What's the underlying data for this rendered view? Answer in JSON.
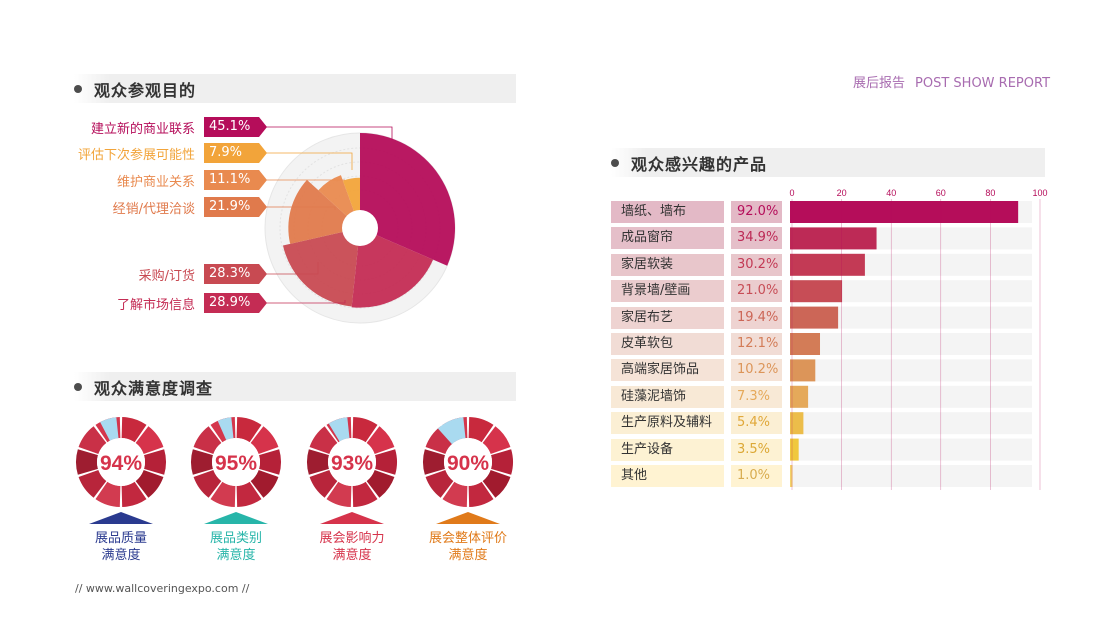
{
  "report_tag": {
    "cn": "展后报告",
    "en": "POST SHOW REPORT"
  },
  "sections": {
    "purpose": "观众参观目的",
    "satisfaction": "观众满意度调查",
    "products": "观众感兴趣的产品"
  },
  "footer": {
    "url": "//  www.wallcoveringexpo.com  //"
  },
  "chart_data": [
    {
      "type": "pie",
      "title": "观众参观目的",
      "categories": [
        "建立新的商业联系",
        "评估下次参展可能性",
        "维护商业关系",
        "经销/代理洽谈",
        "采购/订货",
        "了解市场信息"
      ],
      "values": [
        45.1,
        7.9,
        11.1,
        21.9,
        28.3,
        28.9
      ],
      "labels": [
        "45.1%",
        "7.9%",
        "11.1%",
        "21.9%",
        "28.3%",
        "28.9%"
      ],
      "colors": [
        "#b50d5a",
        "#f2a43a",
        "#e98a4f",
        "#e07a4c",
        "#c84a52",
        "#c42c54"
      ]
    },
    {
      "type": "bar",
      "title": "观众感兴趣的产品",
      "categories": [
        "墙纸、墙布",
        "成品窗帘",
        "家居软装",
        "背景墙/壁画",
        "家居布艺",
        "皮革软包",
        "高端家居饰品",
        "硅藻泥墙饰",
        "生产原料及辅料",
        "生产设备",
        "其他"
      ],
      "values": [
        92.0,
        34.9,
        30.2,
        21.0,
        19.4,
        12.1,
        10.2,
        7.3,
        5.4,
        3.5,
        1.0
      ],
      "labels": [
        "92.0%",
        "34.9%",
        "30.2%",
        "21.0%",
        "19.4%",
        "12.1%",
        "10.2%",
        "7.3%",
        "5.4%",
        "3.5%",
        "1.0%"
      ],
      "xlim": [
        0,
        100
      ],
      "xticks": [
        "0",
        "20",
        "40",
        "60",
        "80",
        "100"
      ],
      "colors": [
        "#b50d5a",
        "#bd2a56",
        "#c33a55",
        "#c74d56",
        "#cc6657",
        "#d37c57",
        "#dc9559",
        "#e5a95a",
        "#ecbd4a",
        "#f0c83d",
        "#f3d36a"
      ],
      "label_bg": [
        "#e3b9c6",
        "#e5bfc9",
        "#e8c6cb",
        "#ebccce",
        "#eed3d1",
        "#f1dcd5",
        "#f5e3d7",
        "#f8e9d6",
        "#fbefd4",
        "#fdf2d3",
        "#fff3d2"
      ],
      "value_colors": [
        "#b50d5a",
        "#bd2a56",
        "#c33a55",
        "#c74d56",
        "#cc6657",
        "#d37c57",
        "#dc9559",
        "#e5a95a",
        "#e0a83a",
        "#dca835",
        "#d8ac50"
      ]
    },
    {
      "type": "pie",
      "title": "观众满意度调查",
      "items": [
        {
          "label_line1": "展品质量",
          "label_line2": "满意度",
          "value": 94,
          "text": "94%",
          "accent": "#2a3a8f"
        },
        {
          "label_line1": "展品类别",
          "label_line2": "满意度",
          "value": 95,
          "text": "95%",
          "accent": "#27b5a9"
        },
        {
          "label_line1": "展会影响力",
          "label_line2": "满意度",
          "value": 93,
          "text": "93%",
          "accent": "#d6334b"
        },
        {
          "label_line1": "展会整体评价",
          "label_line2": "满意度",
          "value": 90,
          "text": "90%",
          "accent": "#e07a1a"
        }
      ]
    }
  ]
}
